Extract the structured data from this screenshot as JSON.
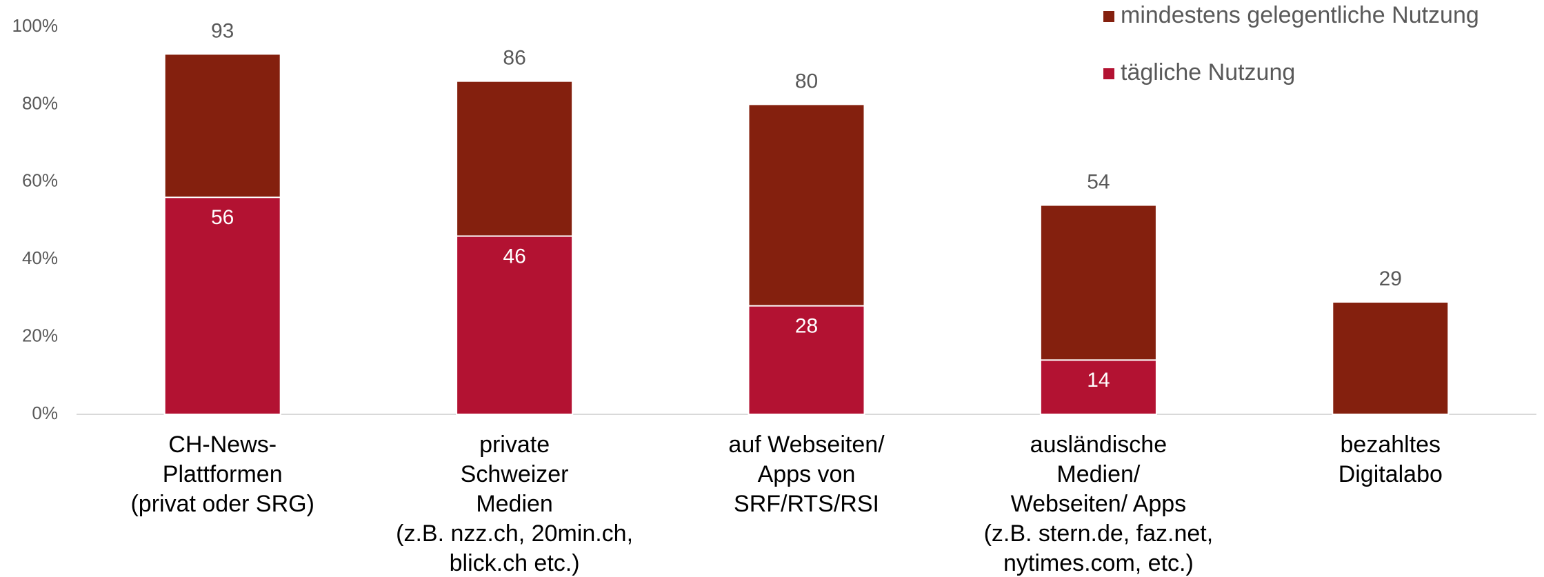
{
  "chart_data": {
    "type": "bar",
    "categories": [
      "CH-News-\nPlattformen\n(privat oder SRG)",
      "private\nSchweizer\nMedien\n(z.B. nzz.ch, 20min.ch,\nblick.ch etc.)",
      "auf Webseiten/\nApps von\nSRF/RTS/RSI",
      "ausländische\nMedien/\nWebseiten/ Apps\n(z.B. stern.de, faz.net,\nnytimes.com, etc.)",
      "bezahltes\nDigitalabo"
    ],
    "series": [
      {
        "name": "mindestens gelegentliche Nutzung",
        "color": "#84200e",
        "values": [
          93,
          86,
          80,
          54,
          29
        ]
      },
      {
        "name": "tägliche Nutzung",
        "color": "#b31232",
        "values": [
          56,
          46,
          28,
          14,
          null
        ]
      }
    ],
    "ylim": [
      0,
      100
    ],
    "yticks": [
      {
        "value": 0,
        "label": "0%"
      },
      {
        "value": 20,
        "label": "20%"
      },
      {
        "value": 40,
        "label": "40%"
      },
      {
        "value": 60,
        "label": "60%"
      },
      {
        "value": 80,
        "label": "80%"
      },
      {
        "value": 100,
        "label": "100%"
      }
    ],
    "grid": false,
    "legend": "top-right"
  }
}
